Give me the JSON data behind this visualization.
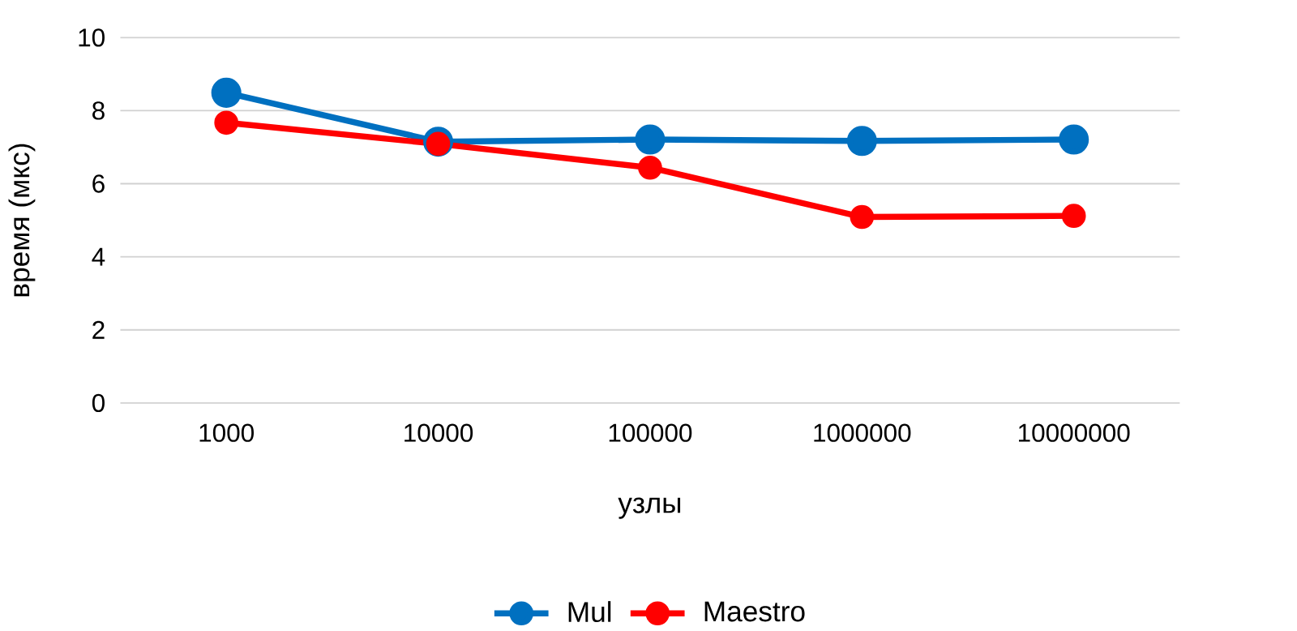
{
  "chart_data": {
    "type": "line",
    "xlabel": "узлы",
    "ylabel": "время (мкс)",
    "categories": [
      "1000",
      "10000",
      "100000",
      "1000000",
      "10000000"
    ],
    "series": [
      {
        "name": "Mul",
        "color": "#0070c0",
        "values": [
          8.49,
          7.15,
          7.21,
          7.17,
          7.21
        ]
      },
      {
        "name": "Maestro",
        "color": "#ff0000",
        "values": [
          7.67,
          7.09,
          6.44,
          5.09,
          5.12
        ]
      }
    ],
    "ylim": [
      0,
      10
    ],
    "yticks": [
      0,
      2,
      4,
      6,
      8,
      10
    ],
    "grid": "y",
    "legend": "bottom",
    "marker": "circle"
  }
}
